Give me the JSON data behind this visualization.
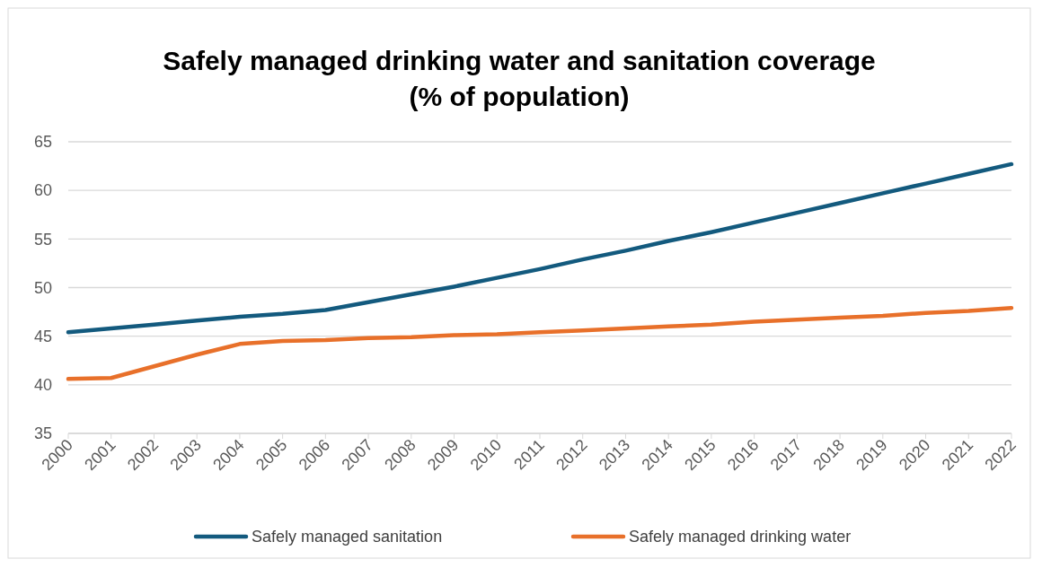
{
  "chart_data": {
    "type": "line",
    "title": "Safely managed drinking water and sanitation coverage (% of population)",
    "categories": [
      "2000",
      "2001",
      "2002",
      "2003",
      "2004",
      "2005",
      "2006",
      "2007",
      "2008",
      "2009",
      "2010",
      "2011",
      "2012",
      "2013",
      "2014",
      "2015",
      "2016",
      "2017",
      "2018",
      "2019",
      "2020",
      "2021",
      "2022"
    ],
    "series": [
      {
        "name": "Safely managed sanitation",
        "color": "#135a7e",
        "values": [
          45.4,
          45.8,
          46.2,
          46.6,
          47.0,
          47.3,
          47.7,
          48.5,
          49.3,
          50.1,
          51.0,
          51.9,
          52.9,
          53.8,
          54.8,
          55.7,
          56.7,
          57.7,
          58.7,
          59.7,
          60.7,
          61.7,
          62.7
        ]
      },
      {
        "name": "Safely managed drinking water",
        "color": "#e8702a",
        "values": [
          40.6,
          40.7,
          41.9,
          43.1,
          44.2,
          44.5,
          44.6,
          44.8,
          44.9,
          45.1,
          45.2,
          45.4,
          45.6,
          45.8,
          46.0,
          46.2,
          46.5,
          46.7,
          46.9,
          47.1,
          47.4,
          47.6,
          47.9
        ]
      }
    ],
    "ylim": [
      35,
      65
    ],
    "yticks": [
      35,
      40,
      45,
      50,
      55,
      60,
      65
    ],
    "grid": "y",
    "legend": "bottom",
    "marker": "none",
    "line_style": "solid"
  }
}
